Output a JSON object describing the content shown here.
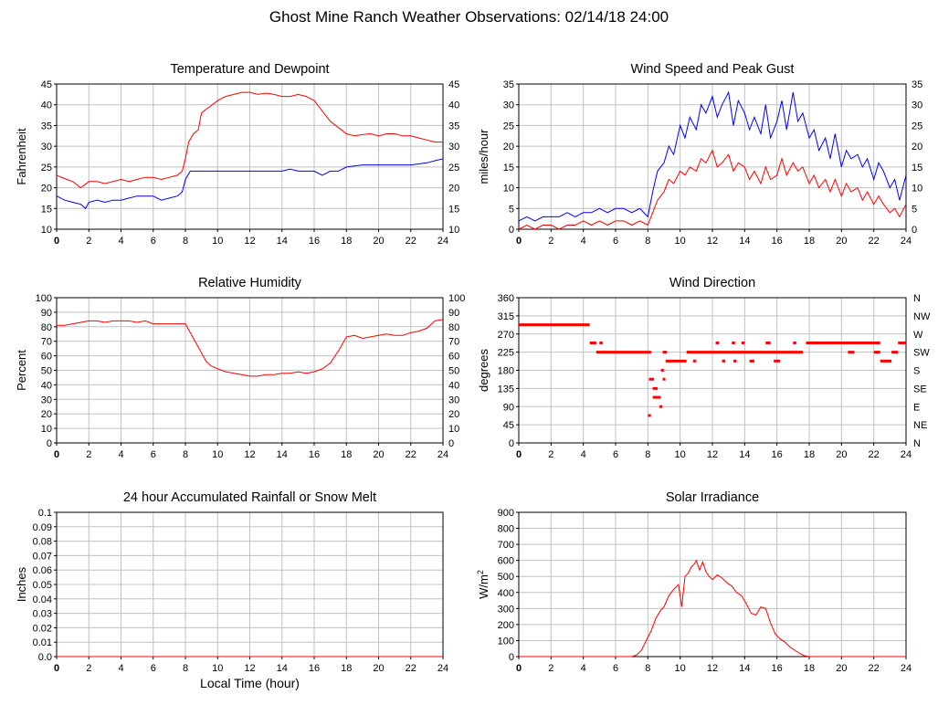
{
  "page": {
    "title": "Ghost Mine Ranch Weather Observations: 02/14/18 24:00"
  },
  "colors": {
    "red": "#ff0000",
    "blue": "#0000ff",
    "grid": "#c0c0c0",
    "axis": "#000000"
  },
  "chart_data": [
    {
      "id": "temp",
      "type": "line",
      "title": "Temperature and Dewpoint",
      "ylabel": "Fahrenheit",
      "xlabel": "",
      "xlim": [
        0,
        24
      ],
      "ylim": [
        10,
        45
      ],
      "xticks": [
        0,
        2,
        4,
        6,
        8,
        10,
        12,
        14,
        16,
        18,
        20,
        22,
        24
      ],
      "yticks": [
        10,
        15,
        20,
        25,
        30,
        35,
        40,
        45
      ],
      "right_axis": true,
      "grid": true,
      "series": [
        {
          "color": "#ff0000",
          "x": [
            0,
            0.5,
            1,
            1.5,
            2,
            2.5,
            3,
            3.5,
            4,
            4.5,
            5,
            5.5,
            6,
            6.5,
            7,
            7.5,
            7.8,
            8,
            8.2,
            8.5,
            8.8,
            9,
            9.3,
            9.5,
            10,
            10.5,
            11,
            11.5,
            12,
            12.5,
            13,
            13.5,
            14,
            14.5,
            15,
            15.5,
            16,
            16.5,
            17,
            17.5,
            18,
            18.5,
            19,
            19.5,
            20,
            20.5,
            21,
            21.5,
            22,
            22.5,
            23,
            23.5,
            24
          ],
          "y": [
            23,
            22.2,
            21.5,
            20,
            21.5,
            21.5,
            21,
            21.5,
            22,
            21.5,
            22,
            22.5,
            22.5,
            22,
            22.5,
            23,
            24,
            27,
            31,
            33,
            34,
            38,
            39,
            39.5,
            41,
            42,
            42.5,
            43,
            43,
            42.5,
            42.8,
            42.5,
            42,
            42,
            42.5,
            42,
            41,
            38.5,
            36,
            34.5,
            33,
            32.5,
            32.8,
            33,
            32.5,
            33,
            33,
            32.5,
            32.5,
            32,
            31.5,
            31,
            31
          ]
        },
        {
          "color": "#0000ff",
          "x": [
            0,
            0.5,
            1,
            1.5,
            1.8,
            2,
            2.5,
            3,
            3.5,
            4,
            4.5,
            5,
            5.5,
            6,
            6.5,
            7,
            7.5,
            7.8,
            8,
            8.3,
            8.5,
            9,
            10,
            11,
            12,
            13,
            14,
            14.5,
            15,
            16,
            16.5,
            17,
            17.5,
            18,
            19,
            20,
            21,
            22,
            23,
            23.5,
            24
          ],
          "y": [
            18,
            17,
            16.5,
            16,
            15,
            16.5,
            17,
            16.5,
            17,
            17,
            17.5,
            18,
            18,
            18,
            17,
            17.5,
            18,
            19,
            22,
            24,
            24,
            24,
            24,
            24,
            24,
            24,
            24,
            24.5,
            24,
            24,
            23,
            24,
            24,
            25,
            25.5,
            25.5,
            25.5,
            25.5,
            26,
            26.5,
            27
          ]
        }
      ]
    },
    {
      "id": "wind",
      "type": "line",
      "title": "Wind Speed and Peak Gust",
      "ylabel": "miles/hour",
      "xlabel": "",
      "xlim": [
        0,
        24
      ],
      "ylim": [
        0,
        35
      ],
      "xticks": [
        0,
        2,
        4,
        6,
        8,
        10,
        12,
        14,
        16,
        18,
        20,
        22,
        24
      ],
      "yticks": [
        0,
        5,
        10,
        15,
        20,
        25,
        30,
        35
      ],
      "right_axis": true,
      "grid": true,
      "series": [
        {
          "color": "#0000ff",
          "x": [
            0,
            0.5,
            1,
            1.5,
            2,
            2.5,
            3,
            3.5,
            4,
            4.5,
            5,
            5.5,
            6,
            6.5,
            7,
            7.5,
            8,
            8.3,
            8.6,
            9,
            9.3,
            9.6,
            10,
            10.3,
            10.6,
            11,
            11.3,
            11.6,
            12,
            12.3,
            12.6,
            13,
            13.3,
            13.6,
            14,
            14.3,
            14.6,
            15,
            15.3,
            15.6,
            16,
            16.3,
            16.6,
            17,
            17.3,
            17.6,
            18,
            18.3,
            18.6,
            19,
            19.3,
            19.6,
            20,
            20.3,
            20.6,
            21,
            21.3,
            21.6,
            22,
            22.3,
            22.6,
            23,
            23.3,
            23.6,
            24
          ],
          "y": [
            2,
            3,
            2,
            3,
            3,
            3,
            4,
            3,
            4,
            4,
            5,
            4,
            5,
            5,
            4,
            5,
            3,
            9,
            14,
            16,
            20,
            18,
            25,
            22,
            27,
            24,
            30,
            28,
            32,
            27,
            30,
            33,
            25,
            31,
            28,
            24,
            27,
            23,
            30,
            22,
            26,
            31,
            24,
            33,
            26,
            28,
            22,
            24,
            19,
            22,
            17,
            23,
            15,
            19,
            17,
            18,
            15,
            17,
            12,
            16,
            14,
            10,
            12,
            7,
            13
          ]
        },
        {
          "color": "#ff0000",
          "x": [
            0,
            0.5,
            1,
            1.5,
            2,
            2.5,
            3,
            3.5,
            4,
            4.5,
            5,
            5.5,
            6,
            6.5,
            7,
            7.5,
            8,
            8.3,
            8.6,
            9,
            9.3,
            9.6,
            10,
            10.3,
            10.6,
            11,
            11.3,
            11.6,
            12,
            12.3,
            12.6,
            13,
            13.3,
            13.6,
            14,
            14.3,
            14.6,
            15,
            15.3,
            15.6,
            16,
            16.3,
            16.6,
            17,
            17.3,
            17.6,
            18,
            18.3,
            18.6,
            19,
            19.3,
            19.6,
            20,
            20.3,
            20.6,
            21,
            21.3,
            21.6,
            22,
            22.3,
            22.6,
            23,
            23.3,
            23.6,
            24
          ],
          "y": [
            0,
            1,
            0,
            1,
            1,
            0,
            1,
            1,
            2,
            1,
            2,
            1,
            2,
            2,
            1,
            2,
            1,
            4,
            7,
            9,
            12,
            11,
            14,
            13,
            15,
            14,
            17,
            16,
            19,
            15,
            16,
            18,
            14,
            16,
            15,
            12,
            14,
            11,
            15,
            12,
            13,
            17,
            13,
            16,
            14,
            15,
            11,
            13,
            10,
            12,
            9,
            12,
            8,
            11,
            9,
            10,
            7,
            9,
            6,
            8,
            6,
            4,
            5,
            3,
            6
          ]
        }
      ]
    },
    {
      "id": "rh",
      "type": "line",
      "title": "Relative Humidity",
      "ylabel": "Percent",
      "xlabel": "",
      "xlim": [
        0,
        24
      ],
      "ylim": [
        0,
        100
      ],
      "xticks": [
        0,
        2,
        4,
        6,
        8,
        10,
        12,
        14,
        16,
        18,
        20,
        22,
        24
      ],
      "yticks": [
        0,
        10,
        20,
        30,
        40,
        50,
        60,
        70,
        80,
        90,
        100
      ],
      "right_axis": true,
      "grid": true,
      "series": [
        {
          "color": "#ff0000",
          "x": [
            0,
            0.5,
            1,
            1.5,
            2,
            2.5,
            3,
            3.5,
            4,
            4.5,
            5,
            5.5,
            6,
            6.5,
            7,
            7.5,
            8,
            8.3,
            8.6,
            9,
            9.3,
            9.6,
            10,
            10.5,
            11,
            11.5,
            12,
            12.5,
            13,
            13.5,
            14,
            14.5,
            15,
            15.5,
            16,
            16.5,
            17,
            17.3,
            17.6,
            18,
            18.5,
            19,
            19.5,
            20,
            20.5,
            21,
            21.5,
            22,
            22.5,
            23,
            23.5,
            24
          ],
          "y": [
            81,
            81,
            82,
            83,
            84,
            84,
            83,
            84,
            84,
            84,
            83,
            84,
            82,
            82,
            82,
            82,
            82,
            76,
            70,
            62,
            56,
            53,
            51,
            49,
            48,
            47,
            46,
            46,
            47,
            47,
            48,
            48,
            49,
            48,
            49,
            51,
            55,
            60,
            65,
            73,
            74,
            72,
            73,
            74,
            75,
            74,
            74,
            76,
            77,
            79,
            84,
            85
          ]
        }
      ]
    },
    {
      "id": "wdir",
      "type": "scatter",
      "title": "Wind Direction",
      "ylabel": "degrees",
      "xlabel": "",
      "xlim": [
        0,
        24
      ],
      "ylim": [
        0,
        360
      ],
      "xticks": [
        0,
        2,
        4,
        6,
        8,
        10,
        12,
        14,
        16,
        18,
        20,
        22,
        24
      ],
      "yticks": [
        0,
        45,
        90,
        135,
        180,
        225,
        270,
        315,
        360
      ],
      "right_labels": [
        "N",
        "NE",
        "E",
        "SE",
        "S",
        "SW",
        "W",
        "NW",
        "N"
      ],
      "grid": true,
      "series": [
        {
          "color": "#ff0000",
          "segments": [
            {
              "x0": 0,
              "x1": 4.4,
              "y": 293
            },
            {
              "x0": 4.4,
              "x1": 4.8,
              "y": 248
            },
            {
              "x0": 4.8,
              "x1": 8.2,
              "y": 225
            },
            {
              "x0": 5.0,
              "x1": 5.2,
              "y": 248
            },
            {
              "x0": 8.3,
              "x1": 8.6,
              "y": 135
            },
            {
              "x0": 8.3,
              "x1": 8.8,
              "y": 113
            },
            {
              "x0": 9.1,
              "x1": 10.4,
              "y": 203
            },
            {
              "x0": 10.4,
              "x1": 17.6,
              "y": 225
            },
            {
              "x0": 10.8,
              "x1": 11.0,
              "y": 203
            },
            {
              "x0": 12.2,
              "x1": 12.4,
              "y": 248
            },
            {
              "x0": 12.6,
              "x1": 12.8,
              "y": 203
            },
            {
              "x0": 13.3,
              "x1": 13.5,
              "y": 203
            },
            {
              "x0": 13.2,
              "x1": 13.4,
              "y": 248
            },
            {
              "x0": 13.8,
              "x1": 14.0,
              "y": 248
            },
            {
              "x0": 14.3,
              "x1": 14.6,
              "y": 203
            },
            {
              "x0": 15.3,
              "x1": 15.6,
              "y": 248
            },
            {
              "x0": 15.8,
              "x1": 16.2,
              "y": 203
            },
            {
              "x0": 17.0,
              "x1": 17.2,
              "y": 248
            },
            {
              "x0": 17.8,
              "x1": 22.4,
              "y": 248
            },
            {
              "x0": 20.4,
              "x1": 20.8,
              "y": 225
            },
            {
              "x0": 22.0,
              "x1": 22.4,
              "y": 225
            },
            {
              "x0": 22.4,
              "x1": 23.1,
              "y": 203
            },
            {
              "x0": 23.1,
              "x1": 23.5,
              "y": 225
            },
            {
              "x0": 23.5,
              "x1": 24,
              "y": 248
            }
          ],
          "points_x": [
            8.1,
            8.15,
            8.3,
            8.8,
            8.9,
            9.0,
            9.0,
            9.1
          ],
          "points_y": [
            68,
            158,
            158,
            90,
            180,
            158,
            225,
            225
          ]
        }
      ]
    },
    {
      "id": "rain",
      "type": "line",
      "title": "24 hour Accumulated Rainfall or Snow Melt",
      "ylabel": "Inches",
      "xlabel": "Local Time (hour)",
      "xlim": [
        0,
        24
      ],
      "ylim": [
        0,
        0.1
      ],
      "xticks": [
        0,
        2,
        4,
        6,
        8,
        10,
        12,
        14,
        16,
        18,
        20,
        22,
        24
      ],
      "yticks": [
        0,
        0.01,
        0.02,
        0.03,
        0.04,
        0.05,
        0.06,
        0.07,
        0.08,
        0.09,
        0.1
      ],
      "ytick_labels": [
        "0.0",
        "0.01",
        "0.02",
        "0.03",
        "0.04",
        "0.05",
        "0.06",
        "0.07",
        "0.08",
        "0.09",
        "0.1"
      ],
      "right_axis": false,
      "grid": true,
      "series": [
        {
          "color": "#ff0000",
          "x": [
            0,
            24
          ],
          "y": [
            0,
            0
          ]
        }
      ]
    },
    {
      "id": "solar",
      "type": "line",
      "title": "Solar Irradiance",
      "ylabel": "W/m",
      "ylabel_sup": "2",
      "xlabel": "",
      "xlim": [
        0,
        24
      ],
      "ylim": [
        0,
        900
      ],
      "xticks": [
        0,
        2,
        4,
        6,
        8,
        10,
        12,
        14,
        16,
        18,
        20,
        22,
        24
      ],
      "yticks": [
        0,
        100,
        200,
        300,
        400,
        500,
        600,
        700,
        800,
        900
      ],
      "right_axis": false,
      "grid": true,
      "series": [
        {
          "color": "#ff0000",
          "x": [
            0,
            7,
            7.3,
            7.6,
            7.9,
            8.2,
            8.5,
            8.8,
            9,
            9.3,
            9.6,
            9.9,
            10.1,
            10.3,
            10.5,
            10.7,
            10.9,
            11,
            11.2,
            11.4,
            11.6,
            11.8,
            12,
            12.3,
            12.6,
            12.9,
            13.2,
            13.5,
            13.8,
            14.1,
            14.4,
            14.7,
            15,
            15.3,
            15.6,
            15.9,
            16.2,
            16.5,
            16.8,
            17.1,
            17.4,
            17.7,
            18,
            24
          ],
          "y": [
            0,
            0,
            10,
            40,
            100,
            160,
            240,
            290,
            310,
            380,
            420,
            450,
            310,
            500,
            520,
            560,
            580,
            600,
            540,
            590,
            530,
            500,
            480,
            510,
            490,
            460,
            440,
            400,
            380,
            330,
            270,
            260,
            310,
            300,
            210,
            140,
            110,
            90,
            60,
            40,
            20,
            5,
            0,
            0
          ]
        }
      ]
    }
  ]
}
